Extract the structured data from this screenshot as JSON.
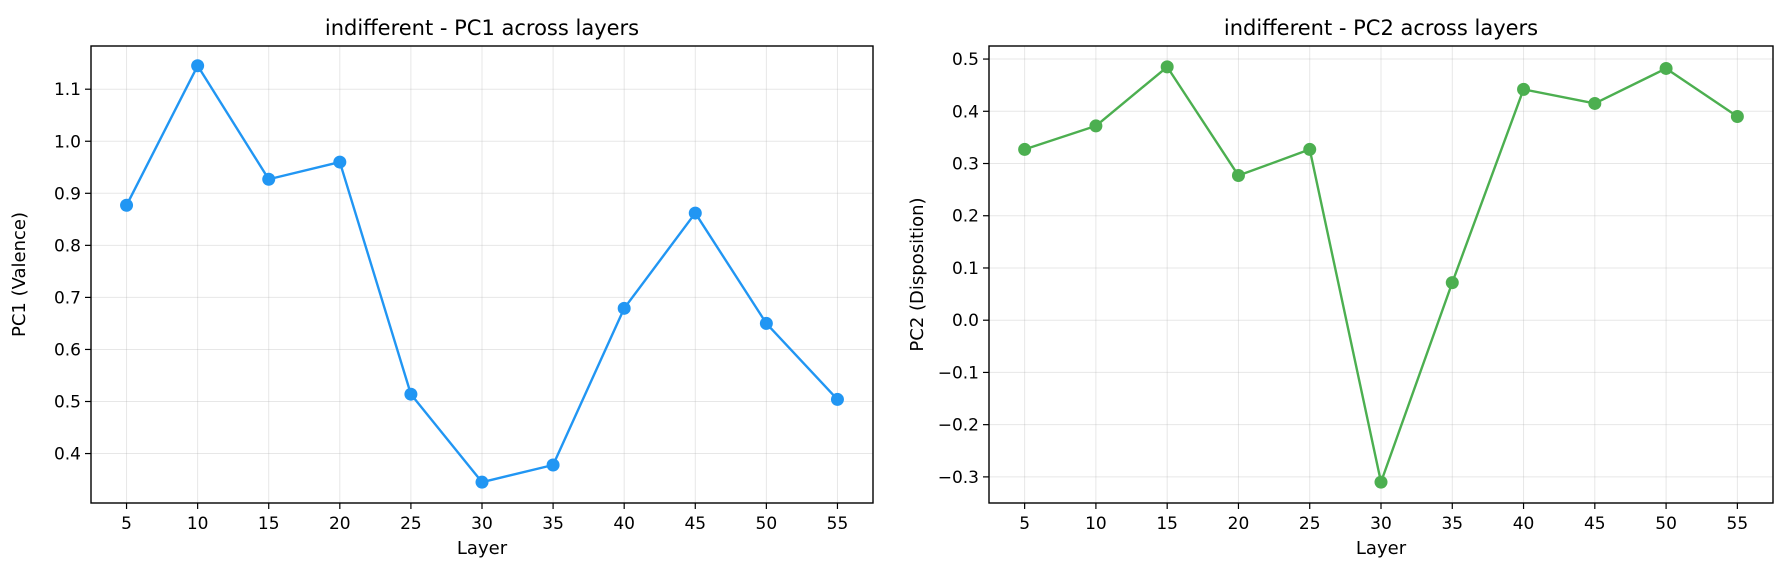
{
  "chart_data": [
    {
      "type": "line",
      "title": "indifferent - PC1 across layers",
      "xlabel": "Layer",
      "ylabel": "PC1 (Valence)",
      "x": [
        5,
        10,
        15,
        20,
        25,
        30,
        35,
        40,
        45,
        50,
        55
      ],
      "x_ticks": [
        5,
        10,
        15,
        20,
        25,
        30,
        35,
        40,
        45,
        50,
        55
      ],
      "xlim": [
        2.5,
        57.5
      ],
      "ylim": [
        0.305,
        1.183
      ],
      "y_ticks": [
        0.4,
        0.5,
        0.6,
        0.7,
        0.8,
        0.9,
        1.0,
        1.1
      ],
      "y_tick_labels": [
        "0.4",
        "0.5",
        "0.6",
        "0.7",
        "0.8",
        "0.9",
        "1.0",
        "1.1"
      ],
      "grid": true,
      "series": [
        {
          "color": "#2196F3",
          "values": [
            0.877,
            1.145,
            0.927,
            0.96,
            0.514,
            0.345,
            0.378,
            0.679,
            0.862,
            0.65,
            0.504
          ]
        }
      ]
    },
    {
      "type": "line",
      "title": "indifferent - PC2 across layers",
      "xlabel": "Layer",
      "ylabel": "PC2 (Disposition)",
      "x": [
        5,
        10,
        15,
        20,
        25,
        30,
        35,
        40,
        45,
        50,
        55
      ],
      "x_ticks": [
        5,
        10,
        15,
        20,
        25,
        30,
        35,
        40,
        45,
        50,
        55
      ],
      "xlim": [
        2.5,
        57.5
      ],
      "ylim": [
        -0.35,
        0.525
      ],
      "y_ticks": [
        -0.3,
        -0.2,
        -0.1,
        0.0,
        0.1,
        0.2,
        0.3,
        0.4,
        0.5
      ],
      "y_tick_labels": [
        "−0.3",
        "−0.2",
        "−0.1",
        "0.0",
        "0.1",
        "0.2",
        "0.3",
        "0.4",
        "0.5"
      ],
      "grid": true,
      "series": [
        {
          "color": "#4CAF50",
          "values": [
            0.327,
            0.372,
            0.485,
            0.277,
            0.327,
            -0.31,
            0.072,
            0.442,
            0.415,
            0.482,
            0.39
          ]
        }
      ]
    }
  ]
}
